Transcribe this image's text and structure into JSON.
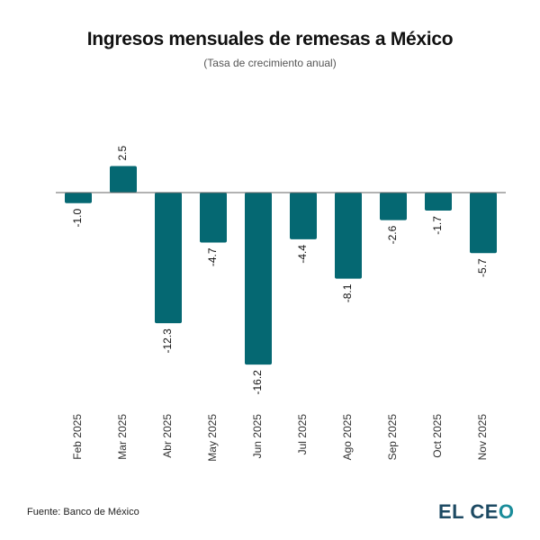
{
  "chart_data": {
    "type": "bar",
    "title": "Ingresos mensuales de remesas a México",
    "subtitle": "(Tasa de crecimiento anual)",
    "categories": [
      "Feb 2025",
      "Mar 2025",
      "Abr 2025",
      "May 2025",
      "Jun 2025",
      "Jul 2025",
      "Ago 2025",
      "Sep 2025",
      "Oct 2025",
      "Nov 2025"
    ],
    "values": [
      -1.0,
      2.5,
      -12.3,
      -4.7,
      -16.2,
      -4.4,
      -8.1,
      -2.6,
      -1.7,
      -5.7
    ],
    "data_labels": [
      "-1.0",
      "2.5",
      "-12.3",
      "-4.7",
      "-16.2",
      "-4.4",
      "-8.1",
      "-2.6",
      "-1.7",
      "-5.7"
    ],
    "bar_color": "#056872",
    "grid": false,
    "legend": "none"
  },
  "footer": {
    "source": "Fuente: Banco de México",
    "logo": "EL CEO"
  }
}
